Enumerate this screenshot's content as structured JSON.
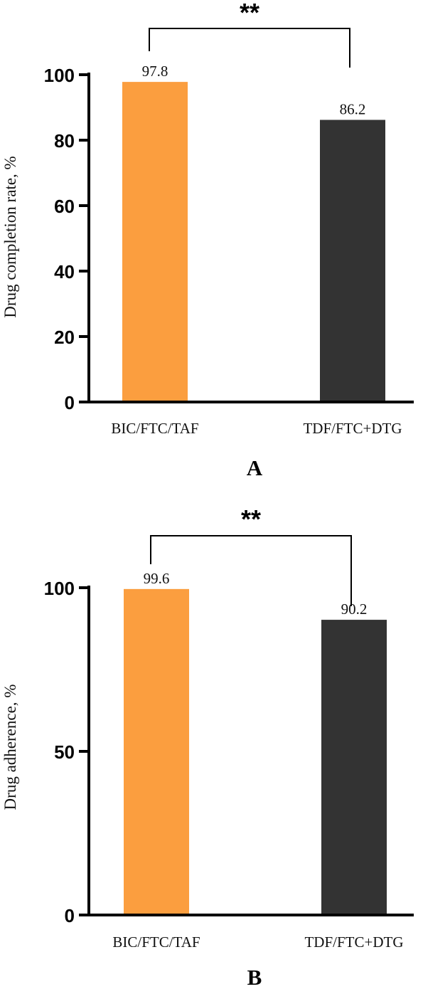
{
  "chart_data": [
    {
      "type": "bar",
      "panel_label": "A",
      "categories": [
        "BIC/FTC/TAF",
        "TDF/FTC+DTG"
      ],
      "values": [
        97.8,
        86.2
      ],
      "value_labels": [
        "97.8",
        "86.2"
      ],
      "ylabel": "Drug completion rate, %",
      "xlabel": "",
      "ylim": [
        0,
        100
      ],
      "yticks": [
        0,
        20,
        40,
        60,
        80,
        100
      ],
      "significance": "**",
      "colors": [
        "#fb9e3f",
        "#333333"
      ],
      "grid": false
    },
    {
      "type": "bar",
      "panel_label": "B",
      "categories": [
        "BIC/FTC/TAF",
        "TDF/FTC+DTG"
      ],
      "values": [
        99.6,
        90.2
      ],
      "value_labels": [
        "99.6",
        "90.2"
      ],
      "ylabel": "Drug adherence, %",
      "xlabel": "",
      "ylim": [
        0,
        100
      ],
      "yticks": [
        0,
        50,
        100
      ],
      "significance": "**",
      "colors": [
        "#fb9e3f",
        "#333333"
      ],
      "grid": false
    }
  ]
}
